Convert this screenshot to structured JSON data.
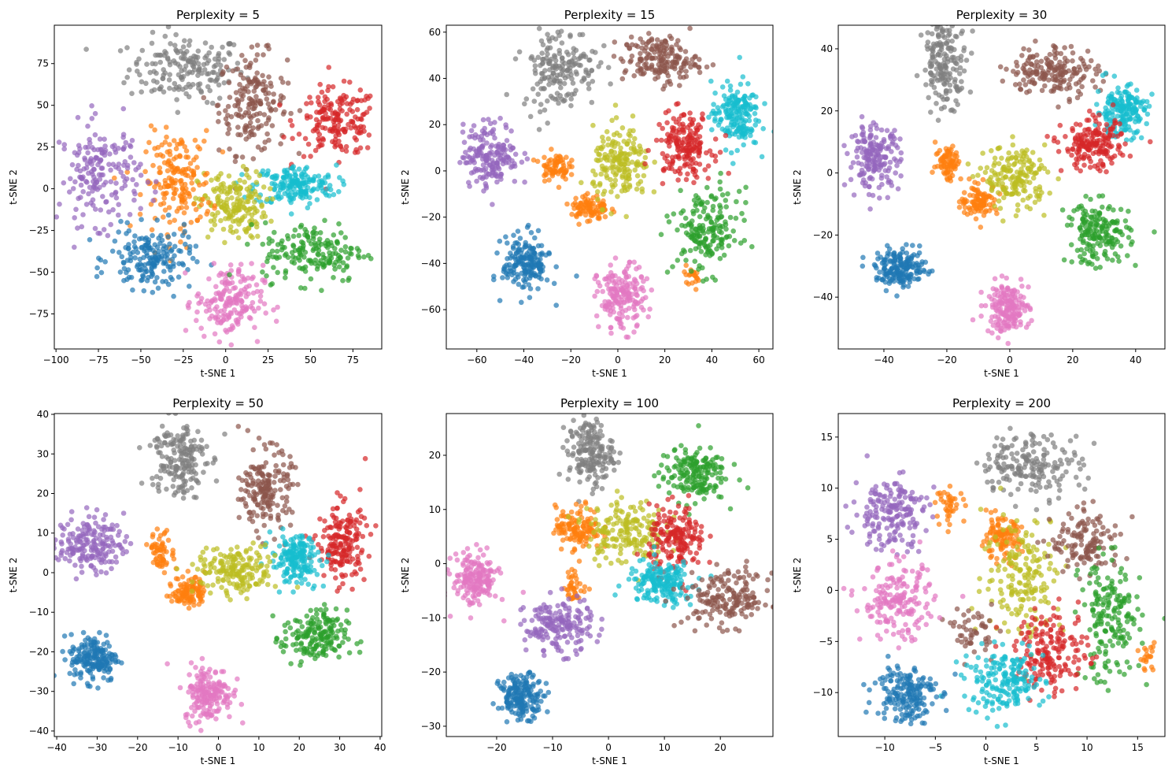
{
  "chart_data": [
    {
      "type": "scatter",
      "title": "Perplexity = 5",
      "xlabel": "t-SNE 1",
      "ylabel": "t-SNE 2",
      "xlim": [
        -101,
        92
      ],
      "ylim": [
        -96,
        98
      ],
      "xticks": [
        -100,
        -75,
        -50,
        -25,
        0,
        25,
        50,
        75
      ],
      "yticks": [
        -75,
        -50,
        -25,
        0,
        25,
        50,
        75
      ],
      "grid": false,
      "clusters": [
        {
          "color": "#7f7f7f",
          "center": [
            -23,
            72
          ],
          "spread": [
            17,
            10
          ],
          "n": 180
        },
        {
          "color": "#8c564b",
          "center": [
            16,
            51
          ],
          "spread": [
            10,
            15
          ],
          "n": 180
        },
        {
          "color": "#d62728",
          "center": [
            66,
            40
          ],
          "spread": [
            12,
            10
          ],
          "n": 180
        },
        {
          "color": "#17becf",
          "center": [
            41,
            2
          ],
          "spread": [
            12,
            6
          ],
          "n": 180
        },
        {
          "color": "#bcbd22",
          "center": [
            4,
            -10
          ],
          "spread": [
            10,
            10
          ],
          "n": 180
        },
        {
          "color": "#ff7f0e",
          "center": [
            -28,
            4
          ],
          "spread": [
            10,
            15
          ],
          "n": 180
        },
        {
          "color": "#9467bd",
          "center": [
            -74,
            9
          ],
          "spread": [
            12,
            15
          ],
          "n": 180
        },
        {
          "color": "#1f77b4",
          "center": [
            -44,
            -42
          ],
          "spread": [
            12,
            9
          ],
          "n": 180
        },
        {
          "color": "#e377c2",
          "center": [
            2,
            -68
          ],
          "spread": [
            10,
            11
          ],
          "n": 180
        },
        {
          "color": "#2ca02c",
          "center": [
            52,
            -38
          ],
          "spread": [
            15,
            9
          ],
          "n": 180
        }
      ]
    },
    {
      "type": "scatter",
      "title": "Perplexity = 15",
      "xlabel": "t-SNE 1",
      "ylabel": "t-SNE 2",
      "xlim": [
        -73,
        66
      ],
      "ylim": [
        -77,
        63
      ],
      "xticks": [
        -60,
        -40,
        -20,
        0,
        20,
        40,
        60
      ],
      "yticks": [
        -60,
        -40,
        -20,
        0,
        20,
        40,
        60
      ],
      "grid": false,
      "clusters": [
        {
          "color": "#7f7f7f",
          "center": [
            -25,
            45
          ],
          "spread": [
            8,
            9
          ],
          "n": 180
        },
        {
          "color": "#8c564b",
          "center": [
            18,
            48
          ],
          "spread": [
            8,
            5
          ],
          "n": 180
        },
        {
          "color": "#17becf",
          "center": [
            50,
            24
          ],
          "spread": [
            5,
            7
          ],
          "n": 180
        },
        {
          "color": "#9467bd",
          "center": [
            -54,
            7
          ],
          "spread": [
            6,
            7
          ],
          "n": 180
        },
        {
          "color": "#ff7f0e",
          "center": [
            -27,
            2
          ],
          "spread": [
            3,
            3
          ],
          "n": 70
        },
        {
          "color": "#ff7f0e",
          "center": [
            -12,
            -16
          ],
          "spread": [
            4,
            3
          ],
          "n": 90
        },
        {
          "color": "#ff7f0e",
          "center": [
            32,
            -45
          ],
          "spread": [
            2,
            2
          ],
          "n": 20
        },
        {
          "color": "#bcbd22",
          "center": [
            1.5,
            2
          ],
          "spread": [
            6,
            8
          ],
          "n": 180
        },
        {
          "color": "#d62728",
          "center": [
            28,
            11
          ],
          "spread": [
            6,
            7
          ],
          "n": 180
        },
        {
          "color": "#2ca02c",
          "center": [
            38,
            -26
          ],
          "spread": [
            7,
            9
          ],
          "n": 180
        },
        {
          "color": "#1f77b4",
          "center": [
            -39,
            -40
          ],
          "spread": [
            5,
            6
          ],
          "n": 180
        },
        {
          "color": "#e377c2",
          "center": [
            1.5,
            -55
          ],
          "spread": [
            5,
            7
          ],
          "n": 180
        }
      ]
    },
    {
      "type": "scatter",
      "title": "Perplexity = 30",
      "xlabel": "t-SNE 1",
      "ylabel": "t-SNE 2",
      "xlim": [
        -54.5,
        49.3
      ],
      "ylim": [
        -56.7,
        47.6
      ],
      "xticks": [
        -40,
        -20,
        0,
        20,
        40
      ],
      "yticks": [
        -40,
        -20,
        0,
        20,
        40
      ],
      "grid": false,
      "clusters": [
        {
          "color": "#7f7f7f",
          "center": [
            -20.5,
            36
          ],
          "spread": [
            3.5,
            7
          ],
          "n": 180
        },
        {
          "color": "#8c564b",
          "center": [
            14,
            33
          ],
          "spread": [
            7,
            4
          ],
          "n": 180
        },
        {
          "color": "#17becf",
          "center": [
            35.5,
            20
          ],
          "spread": [
            4,
            4
          ],
          "n": 180
        },
        {
          "color": "#9467bd",
          "center": [
            -43,
            5
          ],
          "spread": [
            4,
            5
          ],
          "n": 180
        },
        {
          "color": "#ff7f0e",
          "center": [
            -19.5,
            3.5
          ],
          "spread": [
            2,
            3
          ],
          "n": 80
        },
        {
          "color": "#ff7f0e",
          "center": [
            -9.5,
            -9
          ],
          "spread": [
            3,
            2.5
          ],
          "n": 100
        },
        {
          "color": "#bcbd22",
          "center": [
            1.8,
            -1.5
          ],
          "spread": [
            5,
            5
          ],
          "n": 180
        },
        {
          "color": "#d62728",
          "center": [
            26.8,
            8.7
          ],
          "spread": [
            5,
            4
          ],
          "n": 180
        },
        {
          "color": "#2ca02c",
          "center": [
            28,
            -19.4
          ],
          "spread": [
            5,
            5
          ],
          "n": 180
        },
        {
          "color": "#1f77b4",
          "center": [
            -34.5,
            -30.8
          ],
          "spread": [
            4,
            3
          ],
          "n": 180
        },
        {
          "color": "#e377c2",
          "center": [
            -0.8,
            -43.5
          ],
          "spread": [
            3.5,
            4
          ],
          "n": 180
        }
      ]
    },
    {
      "type": "scatter",
      "title": "Perplexity = 50",
      "xlabel": "t-SNE 1",
      "ylabel": "t-SNE 2",
      "xlim": [
        -40.6,
        40.4
      ],
      "ylim": [
        -41.4,
        40.2
      ],
      "xticks": [
        -40,
        -30,
        -20,
        -10,
        0,
        10,
        20,
        30,
        40
      ],
      "yticks": [
        -40,
        -30,
        -20,
        -10,
        0,
        10,
        20,
        30,
        40
      ],
      "grid": false,
      "clusters": [
        {
          "color": "#7f7f7f",
          "center": [
            -10,
            29
          ],
          "spread": [
            3.5,
            5
          ],
          "n": 180
        },
        {
          "color": "#8c564b",
          "center": [
            12,
            21
          ],
          "spread": [
            3,
            5
          ],
          "n": 180
        },
        {
          "color": "#d62728",
          "center": [
            30.6,
            7.4
          ],
          "spread": [
            3,
            5
          ],
          "n": 180
        },
        {
          "color": "#17becf",
          "center": [
            19,
            3.4
          ],
          "spread": [
            3,
            3
          ],
          "n": 180
        },
        {
          "color": "#9467bd",
          "center": [
            -31.6,
            7.4
          ],
          "spread": [
            4,
            3.5
          ],
          "n": 180
        },
        {
          "color": "#ff7f0e",
          "center": [
            -7.3,
            -4.6
          ],
          "spread": [
            2,
            2
          ],
          "n": 110
        },
        {
          "color": "#ff7f0e",
          "center": [
            -14,
            5.4
          ],
          "spread": [
            1.5,
            2.5
          ],
          "n": 60
        },
        {
          "color": "#bcbd22",
          "center": [
            4.4,
            0.4
          ],
          "spread": [
            5,
            3
          ],
          "n": 180
        },
        {
          "color": "#2ca02c",
          "center": [
            23.8,
            -16.5
          ],
          "spread": [
            4,
            3.5
          ],
          "n": 180
        },
        {
          "color": "#1f77b4",
          "center": [
            -30.7,
            -21.5
          ],
          "spread": [
            3,
            3
          ],
          "n": 180
        },
        {
          "color": "#e377c2",
          "center": [
            -2.5,
            -30.4
          ],
          "spread": [
            3,
            3.5
          ],
          "n": 180
        }
      ]
    },
    {
      "type": "scatter",
      "title": "Perplexity = 100",
      "xlabel": "t-SNE 1",
      "ylabel": "t-SNE 2",
      "xlim": [
        -29,
        29.4
      ],
      "ylim": [
        -31.9,
        27.7
      ],
      "xticks": [
        -20,
        -10,
        0,
        10,
        20
      ],
      "yticks": [
        -30,
        -20,
        -10,
        0,
        10,
        20
      ],
      "grid": false,
      "clusters": [
        {
          "color": "#7f7f7f",
          "center": [
            -3.2,
            20.5
          ],
          "spread": [
            2,
            3
          ],
          "n": 180
        },
        {
          "color": "#2ca02c",
          "center": [
            15,
            16.5
          ],
          "spread": [
            3,
            2.5
          ],
          "n": 180
        },
        {
          "color": "#ff7f0e",
          "center": [
            -5.4,
            6.6
          ],
          "spread": [
            2,
            2
          ],
          "n": 130
        },
        {
          "color": "#ff7f0e",
          "center": [
            -6,
            -4.3
          ],
          "spread": [
            1,
            1.5
          ],
          "n": 40
        },
        {
          "color": "#bcbd22",
          "center": [
            3.1,
            6
          ],
          "spread": [
            3.5,
            3
          ],
          "n": 180
        },
        {
          "color": "#d62728",
          "center": [
            12.3,
            4.4
          ],
          "spread": [
            2.5,
            3
          ],
          "n": 180
        },
        {
          "color": "#17becf",
          "center": [
            9.4,
            -3.5
          ],
          "spread": [
            3,
            2
          ],
          "n": 180
        },
        {
          "color": "#8c564b",
          "center": [
            21.4,
            -6.5
          ],
          "spread": [
            4,
            2.5
          ],
          "n": 180
        },
        {
          "color": "#e377c2",
          "center": [
            -23.8,
            -3
          ],
          "spread": [
            2,
            2.5
          ],
          "n": 180
        },
        {
          "color": "#9467bd",
          "center": [
            -8.9,
            -11.5
          ],
          "spread": [
            3,
            2.5
          ],
          "n": 180
        },
        {
          "color": "#1f77b4",
          "center": [
            -15.5,
            -24.5
          ],
          "spread": [
            2,
            2
          ],
          "n": 180
        }
      ]
    },
    {
      "type": "scatter",
      "title": "Perplexity = 200",
      "xlabel": "t-SNE 1",
      "ylabel": "t-SNE 2",
      "xlim": [
        -14.6,
        17.7
      ],
      "ylim": [
        -14.3,
        17.3
      ],
      "xticks": [
        -10,
        -5,
        0,
        5,
        10,
        15
      ],
      "yticks": [
        -10,
        -5,
        0,
        5,
        10,
        15
      ],
      "grid": false,
      "clusters": [
        {
          "color": "#7f7f7f",
          "center": [
            4.5,
            12.3
          ],
          "spread": [
            2.5,
            1.5
          ],
          "n": 180
        },
        {
          "color": "#9467bd",
          "center": [
            -9.5,
            7.7
          ],
          "spread": [
            1.8,
            1.8
          ],
          "n": 180
        },
        {
          "color": "#ff7f0e",
          "center": [
            1.5,
            5
          ],
          "spread": [
            1,
            1
          ],
          "n": 110
        },
        {
          "color": "#ff7f0e",
          "center": [
            -3.5,
            8.4
          ],
          "spread": [
            0.7,
            0.8
          ],
          "n": 40
        },
        {
          "color": "#ff7f0e",
          "center": [
            16,
            -6.5
          ],
          "spread": [
            0.4,
            0.8
          ],
          "n": 20
        },
        {
          "color": "#bcbd22",
          "center": [
            3.7,
            1.5
          ],
          "spread": [
            2,
            3
          ],
          "n": 180
        },
        {
          "color": "#8c564b",
          "center": [
            10,
            4.6
          ],
          "spread": [
            1.8,
            1.5
          ],
          "n": 130
        },
        {
          "color": "#8c564b",
          "center": [
            -1.3,
            -3.9
          ],
          "spread": [
            1,
            1.2
          ],
          "n": 50
        },
        {
          "color": "#e377c2",
          "center": [
            -8.7,
            -1.2
          ],
          "spread": [
            1.8,
            1.8
          ],
          "n": 180
        },
        {
          "color": "#2ca02c",
          "center": [
            12.3,
            -3
          ],
          "spread": [
            1.5,
            3
          ],
          "n": 180
        },
        {
          "color": "#d62728",
          "center": [
            6.5,
            -6
          ],
          "spread": [
            1.8,
            2
          ],
          "n": 180
        },
        {
          "color": "#17becf",
          "center": [
            1.8,
            -8.9
          ],
          "spread": [
            2,
            1.5
          ],
          "n": 180
        },
        {
          "color": "#1f77b4",
          "center": [
            -8,
            -10
          ],
          "spread": [
            1.5,
            1.5
          ],
          "n": 180
        }
      ]
    }
  ]
}
